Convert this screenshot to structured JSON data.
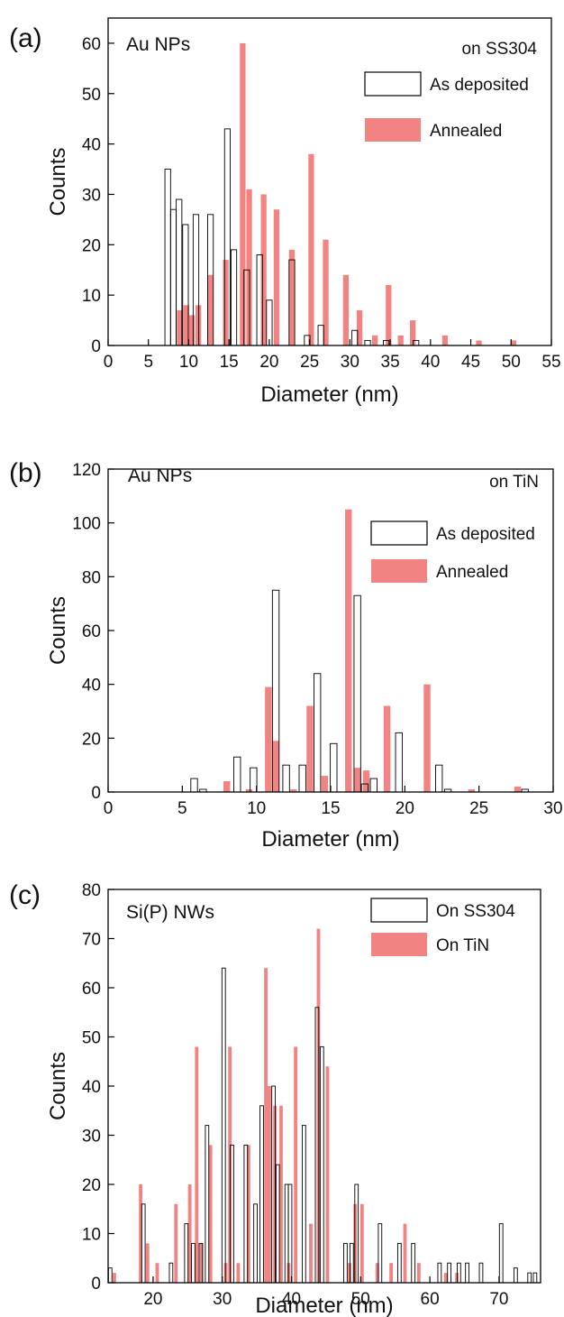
{
  "chart_data": [
    {
      "type": "bar",
      "panel_label": "(a)",
      "title": "Au NPs",
      "subtitle": "on SS304",
      "xlabel": "Diameter (nm)",
      "ylabel": "Counts",
      "xlim": [
        0,
        55
      ],
      "ylim": [
        0,
        65
      ],
      "xticks": [
        0,
        5,
        10,
        15,
        20,
        25,
        30,
        35,
        40,
        45,
        50,
        55
      ],
      "yticks": [
        0,
        10,
        20,
        30,
        40,
        50,
        60
      ],
      "bar_width": 0.7,
      "legend_position": "top-right",
      "series": [
        {
          "name": "As deposited",
          "style": "outline",
          "color": "#000000",
          "points": [
            [
              7.4,
              35
            ],
            [
              8.1,
              27
            ],
            [
              8.8,
              29
            ],
            [
              9.6,
              24
            ],
            [
              10.9,
              26
            ],
            [
              12.7,
              26
            ],
            [
              14.8,
              43
            ],
            [
              15.6,
              19
            ],
            [
              17.2,
              15
            ],
            [
              18.8,
              18
            ],
            [
              20,
              9
            ],
            [
              22.8,
              17
            ],
            [
              24.7,
              2
            ],
            [
              26.4,
              4
            ],
            [
              30.6,
              3
            ],
            [
              32.2,
              1
            ],
            [
              34.5,
              1
            ],
            [
              38.2,
              1
            ]
          ]
        },
        {
          "name": "Annealed",
          "style": "filled",
          "color": "#ef6f6c",
          "points": [
            [
              8.9,
              7
            ],
            [
              9.7,
              8
            ],
            [
              10.4,
              6
            ],
            [
              11.2,
              8
            ],
            [
              12.7,
              14
            ],
            [
              14.6,
              17
            ],
            [
              16.7,
              60
            ],
            [
              17.5,
              31
            ],
            [
              19.3,
              30
            ],
            [
              20.9,
              27
            ],
            [
              22.8,
              19
            ],
            [
              25.2,
              38
            ],
            [
              27,
              21
            ],
            [
              29.5,
              14
            ],
            [
              31.2,
              7
            ],
            [
              33.1,
              2
            ],
            [
              34.8,
              12
            ],
            [
              36.3,
              2
            ],
            [
              37.8,
              5
            ],
            [
              41.8,
              2
            ],
            [
              46,
              1
            ],
            [
              50.3,
              1
            ]
          ]
        }
      ]
    },
    {
      "type": "bar",
      "panel_label": "(b)",
      "title": "Au NPs",
      "subtitle": "on TiN",
      "xlabel": "Diameter (nm)",
      "ylabel": "Counts",
      "xlim": [
        0,
        30
      ],
      "ylim": [
        0,
        120
      ],
      "xticks": [
        0,
        5,
        10,
        15,
        20,
        25,
        30
      ],
      "yticks": [
        0,
        20,
        40,
        60,
        80,
        100,
        120
      ],
      "bar_width": 0.45,
      "legend_position": "top-right",
      "series": [
        {
          "name": "As deposited",
          "style": "outline",
          "color": "#000000",
          "points": [
            [
              5.8,
              5
            ],
            [
              6.4,
              1
            ],
            [
              8.7,
              13
            ],
            [
              9.8,
              9
            ],
            [
              11.3,
              75
            ],
            [
              12.0,
              10
            ],
            [
              13.1,
              10
            ],
            [
              14.1,
              44
            ],
            [
              15.2,
              18
            ],
            [
              16.8,
              73
            ],
            [
              17.3,
              3
            ],
            [
              17.9,
              5
            ],
            [
              19.6,
              22
            ],
            [
              22.3,
              10
            ],
            [
              22.9,
              1
            ],
            [
              28.1,
              1
            ]
          ]
        },
        {
          "name": "Annealed",
          "style": "filled",
          "color": "#ef6f6c",
          "points": [
            [
              8.0,
              4
            ],
            [
              9.5,
              1
            ],
            [
              10.8,
              39
            ],
            [
              11.3,
              19
            ],
            [
              12.5,
              1
            ],
            [
              13.6,
              32
            ],
            [
              14.6,
              6
            ],
            [
              16.2,
              105
            ],
            [
              16.8,
              9
            ],
            [
              17.4,
              8
            ],
            [
              18.8,
              32
            ],
            [
              21.5,
              40
            ],
            [
              24.5,
              1
            ],
            [
              27.6,
              2
            ]
          ]
        }
      ]
    },
    {
      "type": "bar",
      "panel_label": "(c)",
      "title": "Si(P) NWs",
      "subtitle": "",
      "xlabel": "Diameter (nm)",
      "ylabel": "Counts",
      "xlim": [
        13.5,
        76
      ],
      "ylim": [
        0,
        80
      ],
      "xticks": [
        20,
        30,
        40,
        50,
        60,
        70
      ],
      "yticks": [
        0,
        10,
        20,
        30,
        40,
        50,
        60,
        70,
        80
      ],
      "bar_width": 0.5,
      "legend_position": "top-right",
      "series": [
        {
          "name": "On SS304",
          "style": "outline",
          "color": "#000000",
          "points": [
            [
              13.8,
              3
            ],
            [
              18.6,
              16
            ],
            [
              22.6,
              4
            ],
            [
              24.8,
              12
            ],
            [
              25.8,
              8
            ],
            [
              26.9,
              8
            ],
            [
              27.8,
              32
            ],
            [
              30.2,
              64
            ],
            [
              31.4,
              28
            ],
            [
              33.4,
              28
            ],
            [
              34.8,
              16
            ],
            [
              35.7,
              36
            ],
            [
              37.4,
              40
            ],
            [
              38.0,
              24
            ],
            [
              39.3,
              20
            ],
            [
              39.8,
              20
            ],
            [
              41.8,
              32
            ],
            [
              43.7,
              56
            ],
            [
              44.4,
              48
            ],
            [
              47.8,
              8
            ],
            [
              48.7,
              8
            ],
            [
              49.4,
              20
            ],
            [
              52.8,
              12
            ],
            [
              55.6,
              8
            ],
            [
              57.6,
              8
            ],
            [
              61.4,
              4
            ],
            [
              62.8,
              4
            ],
            [
              64.2,
              4
            ],
            [
              65.4,
              4
            ],
            [
              67.4,
              4
            ],
            [
              70.3,
              12
            ],
            [
              72.4,
              3
            ],
            [
              74.4,
              2
            ],
            [
              75.2,
              2
            ]
          ]
        },
        {
          "name": "On TiN",
          "style": "filled",
          "color": "#ef6f6c",
          "points": [
            [
              14.4,
              2
            ],
            [
              18.2,
              20
            ],
            [
              19.2,
              8
            ],
            [
              20.6,
              4
            ],
            [
              23.3,
              16
            ],
            [
              25.3,
              20
            ],
            [
              26.3,
              48
            ],
            [
              27.0,
              8
            ],
            [
              28.3,
              28
            ],
            [
              30.5,
              4
            ],
            [
              31.1,
              48
            ],
            [
              32.3,
              4
            ],
            [
              33.8,
              28
            ],
            [
              36.3,
              64
            ],
            [
              36.8,
              40
            ],
            [
              37.6,
              36
            ],
            [
              38.5,
              36
            ],
            [
              39.6,
              4
            ],
            [
              40.6,
              48
            ],
            [
              42.8,
              12
            ],
            [
              43.9,
              72
            ],
            [
              45.2,
              44
            ],
            [
              48.4,
              4
            ],
            [
              49.2,
              16
            ],
            [
              50.2,
              16
            ],
            [
              52.4,
              4
            ],
            [
              54.4,
              4
            ],
            [
              56.4,
              12
            ],
            [
              58.4,
              4
            ],
            [
              62.3,
              2
            ],
            [
              63.9,
              2
            ]
          ]
        }
      ]
    }
  ]
}
